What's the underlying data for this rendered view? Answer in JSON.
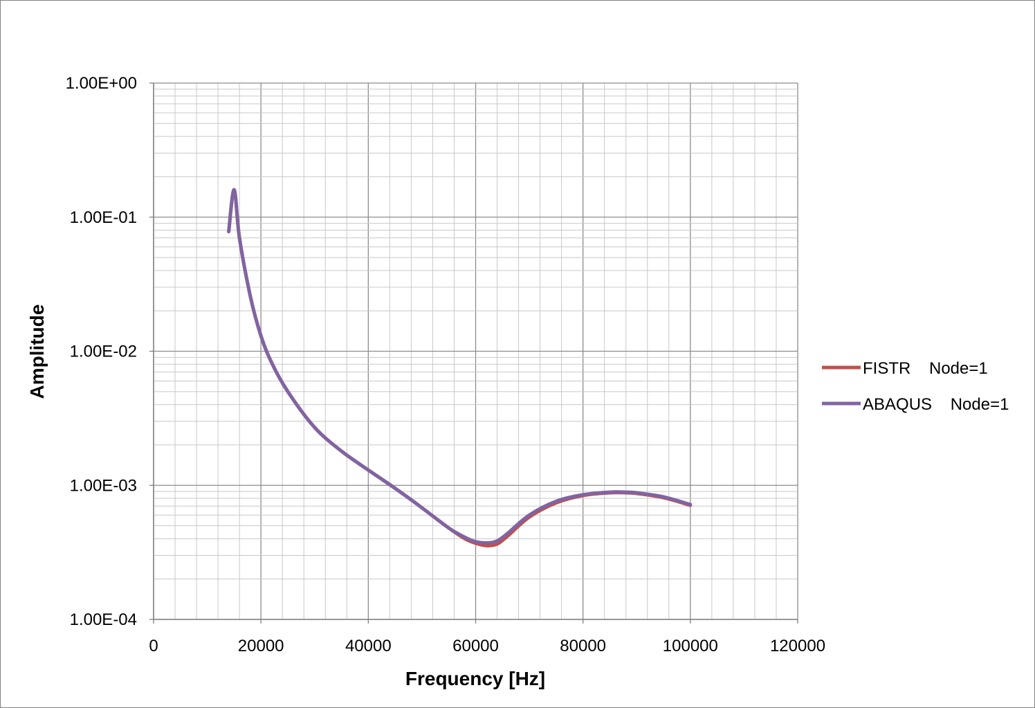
{
  "chart_data": {
    "type": "line",
    "xlabel": "Frequency [Hz]",
    "ylabel": "Amplitude",
    "xlim": [
      0,
      120000
    ],
    "ylim": [
      0.0001,
      1
    ],
    "yscale": "log",
    "grid": true,
    "legend_position": "right",
    "x_ticks": [
      "0",
      "20000",
      "40000",
      "60000",
      "80000",
      "100000",
      "120000"
    ],
    "y_ticks": [
      "1.00E-04",
      "1.00E-03",
      "1.00E-02",
      "1.00E-01",
      "1.00E+00"
    ],
    "series": [
      {
        "name": "FISTR    Node=1",
        "color": "#c0504d",
        "x": [
          14000,
          15000,
          16000,
          18000,
          20000,
          22000,
          25000,
          30000,
          35000,
          40000,
          45000,
          50000,
          55000,
          58000,
          60000,
          62000,
          64000,
          66000,
          70000,
          75000,
          80000,
          85000,
          88000,
          90000,
          95000,
          100000
        ],
        "y": [
          0.078,
          0.16,
          0.07,
          0.026,
          0.013,
          0.0082,
          0.005,
          0.0027,
          0.0018,
          0.0013,
          0.00095,
          0.00068,
          0.00048,
          0.0004,
          0.00037,
          0.000355,
          0.000365,
          0.00042,
          0.00058,
          0.00074,
          0.00084,
          0.00088,
          0.00088,
          0.00087,
          0.00081,
          0.00071
        ]
      },
      {
        "name": "ABAQUS    Node=1",
        "color": "#8064a2",
        "x": [
          14000,
          15000,
          16000,
          18000,
          20000,
          22000,
          25000,
          30000,
          35000,
          40000,
          45000,
          50000,
          55000,
          58000,
          60000,
          62000,
          64000,
          66000,
          70000,
          75000,
          80000,
          85000,
          88000,
          90000,
          95000,
          100000
        ],
        "y": [
          0.078,
          0.16,
          0.07,
          0.026,
          0.013,
          0.0082,
          0.005,
          0.0027,
          0.0018,
          0.0013,
          0.00095,
          0.00068,
          0.00048,
          0.00041,
          0.00038,
          0.000372,
          0.000385,
          0.00044,
          0.0006,
          0.00076,
          0.00085,
          0.00089,
          0.00089,
          0.00088,
          0.00082,
          0.00072
        ]
      }
    ]
  }
}
